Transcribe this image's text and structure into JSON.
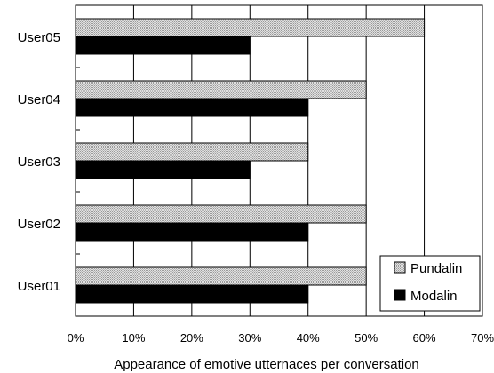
{
  "chart_data": {
    "type": "bar",
    "orientation": "horizontal",
    "categories": [
      "User05",
      "User04",
      "User03",
      "User02",
      "User01"
    ],
    "series": [
      {
        "name": "Pundalin",
        "values": [
          60,
          50,
          40,
          50,
          50
        ],
        "color": "#c8c8c8",
        "pattern": "dotted-gray"
      },
      {
        "name": "Modalin",
        "values": [
          30,
          40,
          30,
          40,
          40
        ],
        "color": "#000000"
      }
    ],
    "x_ticks": [
      "0%",
      "10%",
      "20%",
      "30%",
      "40%",
      "50%",
      "60%",
      "70%"
    ],
    "xlim": [
      0,
      70
    ],
    "xlabel": "Appearance of emotive utternaces per conversation",
    "ylabel": "",
    "title": "",
    "grid": "vertical",
    "legend": {
      "placement": "bottom-right",
      "items": [
        "Pundalin",
        "Modalin"
      ]
    }
  }
}
